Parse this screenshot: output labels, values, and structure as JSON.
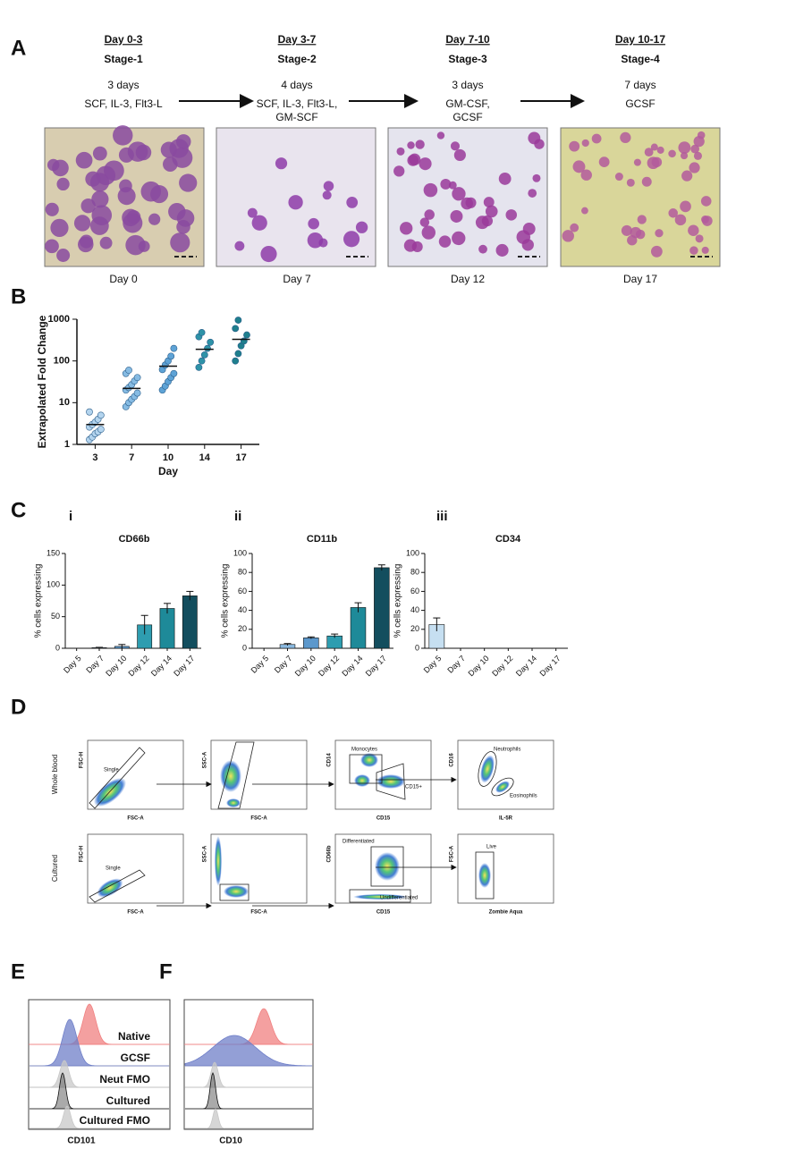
{
  "panel_labels": [
    "A",
    "B",
    "C",
    "D",
    "E",
    "F"
  ],
  "stages": [
    {
      "days": "Day 0-3",
      "stage": "Stage-1",
      "duration": "3 days",
      "factors": [
        "SCF, IL-3, Flt3-L"
      ],
      "image_label": "Day 0"
    },
    {
      "days": "Day 3-7",
      "stage": "Stage-2",
      "duration": "4 days",
      "factors": [
        "SCF, IL-3, Flt3-L,",
        "GM-SCF"
      ],
      "image_label": "Day 7"
    },
    {
      "days": "Day 7-10",
      "stage": "Stage-3",
      "duration": "3 days",
      "factors": [
        "GM-CSF,",
        "GCSF"
      ],
      "image_label": "Day 12"
    },
    {
      "days": "Day 10-17",
      "stage": "Stage-4",
      "duration": "7 days",
      "factors": [
        "GCSF"
      ],
      "image_label": "Day 17"
    }
  ],
  "chart_data": [
    {
      "type": "dot",
      "ylabel": "Extrapolated Fold Change",
      "xlabel": "Day",
      "log_scale": true,
      "categories": [
        "3",
        "7",
        "10",
        "14",
        "17"
      ],
      "colors": [
        "#b3d4ee",
        "#86bbe3",
        "#5ea3d6",
        "#2e93a8",
        "#1f7f8d"
      ],
      "points": [
        [
          1.3,
          1.5,
          1.8,
          2,
          2.3,
          2.6,
          3,
          3.4,
          4,
          5,
          6
        ],
        [
          8,
          10,
          12,
          14,
          17,
          20,
          23,
          27,
          33,
          40,
          50,
          60
        ],
        [
          20,
          25,
          32,
          40,
          50,
          62,
          80,
          100,
          130,
          200
        ],
        [
          70,
          100,
          140,
          200,
          280,
          380,
          480
        ],
        [
          100,
          150,
          230,
          300,
          420,
          600,
          950
        ]
      ],
      "medians": [
        3,
        22,
        75,
        190,
        330
      ],
      "ylim": [
        1,
        1000
      ],
      "yticks": [
        1,
        10,
        100,
        1000
      ]
    },
    {
      "type": "bar",
      "label": "i",
      "title": "CD66b",
      "ylabel": "% cells expressing",
      "categories": [
        "Day 5",
        "Day 7",
        "Day 10",
        "Day 12",
        "Day 14",
        "Day 17"
      ],
      "colors": [
        "#c6dff1",
        "#8ab9e0",
        "#5c98cc",
        "#2e9db0",
        "#1e8a99",
        "#134e5e"
      ],
      "values": [
        0,
        1,
        3,
        37,
        63,
        83
      ],
      "errors": [
        0,
        0.5,
        3,
        15,
        8,
        7
      ],
      "ylim": [
        0,
        150
      ],
      "yticks": [
        0,
        50,
        100,
        150
      ]
    },
    {
      "type": "bar",
      "label": "ii",
      "title": "CD11b",
      "ylabel": "% cells expressing",
      "categories": [
        "Day 5",
        "Day 7",
        "Day 10",
        "Day 12",
        "Day 14",
        "Day 17"
      ],
      "colors": [
        "#c6dff1",
        "#8ab9e0",
        "#5c98cc",
        "#2e9db0",
        "#1e8a99",
        "#134e5e"
      ],
      "values": [
        0,
        4,
        11,
        13,
        43,
        85
      ],
      "errors": [
        0,
        1,
        1,
        2,
        5,
        3
      ],
      "ylim": [
        0,
        100
      ],
      "yticks": [
        0,
        20,
        40,
        60,
        80,
        100
      ]
    },
    {
      "type": "bar",
      "label": "iii",
      "title": "CD34",
      "ylabel": "% cells expressing",
      "categories": [
        "Day 5",
        "Day 7",
        "Day 10",
        "Day 12",
        "Day 14",
        "Day 17"
      ],
      "colors": [
        "#c6dff1",
        "#8ab9e0",
        "#5c98cc",
        "#2e9db0",
        "#1e8a99",
        "#134e5e"
      ],
      "values": [
        25,
        0,
        0,
        0,
        0,
        0
      ],
      "errors": [
        7,
        0,
        0,
        0,
        0,
        0
      ],
      "ylim": [
        0,
        100
      ],
      "yticks": [
        0,
        20,
        40,
        60,
        80,
        100
      ]
    }
  ],
  "gating": [
    {
      "label": "Whole blood",
      "plots": [
        {
          "y": "FSC-H",
          "x": "FSC-A",
          "gates": [
            "Single"
          ]
        },
        {
          "y": "SSC-A",
          "x": "FSC-A",
          "gates": []
        },
        {
          "y": "CD14",
          "x": "CD15",
          "gates": [
            "Monocytes",
            "CD15+"
          ]
        },
        {
          "y": "CD16",
          "x": "IL-5R",
          "gates": [
            "Neutrophils",
            "Eosinophils"
          ]
        }
      ]
    },
    {
      "label": "Cultured",
      "plots": [
        {
          "y": "FSC-H",
          "x": "FSC-A",
          "gates": [
            "Single"
          ]
        },
        {
          "y": "SSC-A",
          "x": "FSC-A",
          "gates": []
        },
        {
          "y": "CD66b",
          "x": "CD15",
          "gates": [
            "Differentiated",
            "Undifferentiated"
          ]
        },
        {
          "y": "FSC-A",
          "x": "Zombie Aqua",
          "gates": [
            "Live"
          ]
        }
      ]
    }
  ],
  "histograms": {
    "tracks": [
      "Native",
      "GCSF",
      "Neut FMO",
      "Cultured",
      "Cultured FMO"
    ],
    "panels": [
      {
        "xlabel": "CD101"
      },
      {
        "xlabel": "CD10"
      }
    ]
  }
}
